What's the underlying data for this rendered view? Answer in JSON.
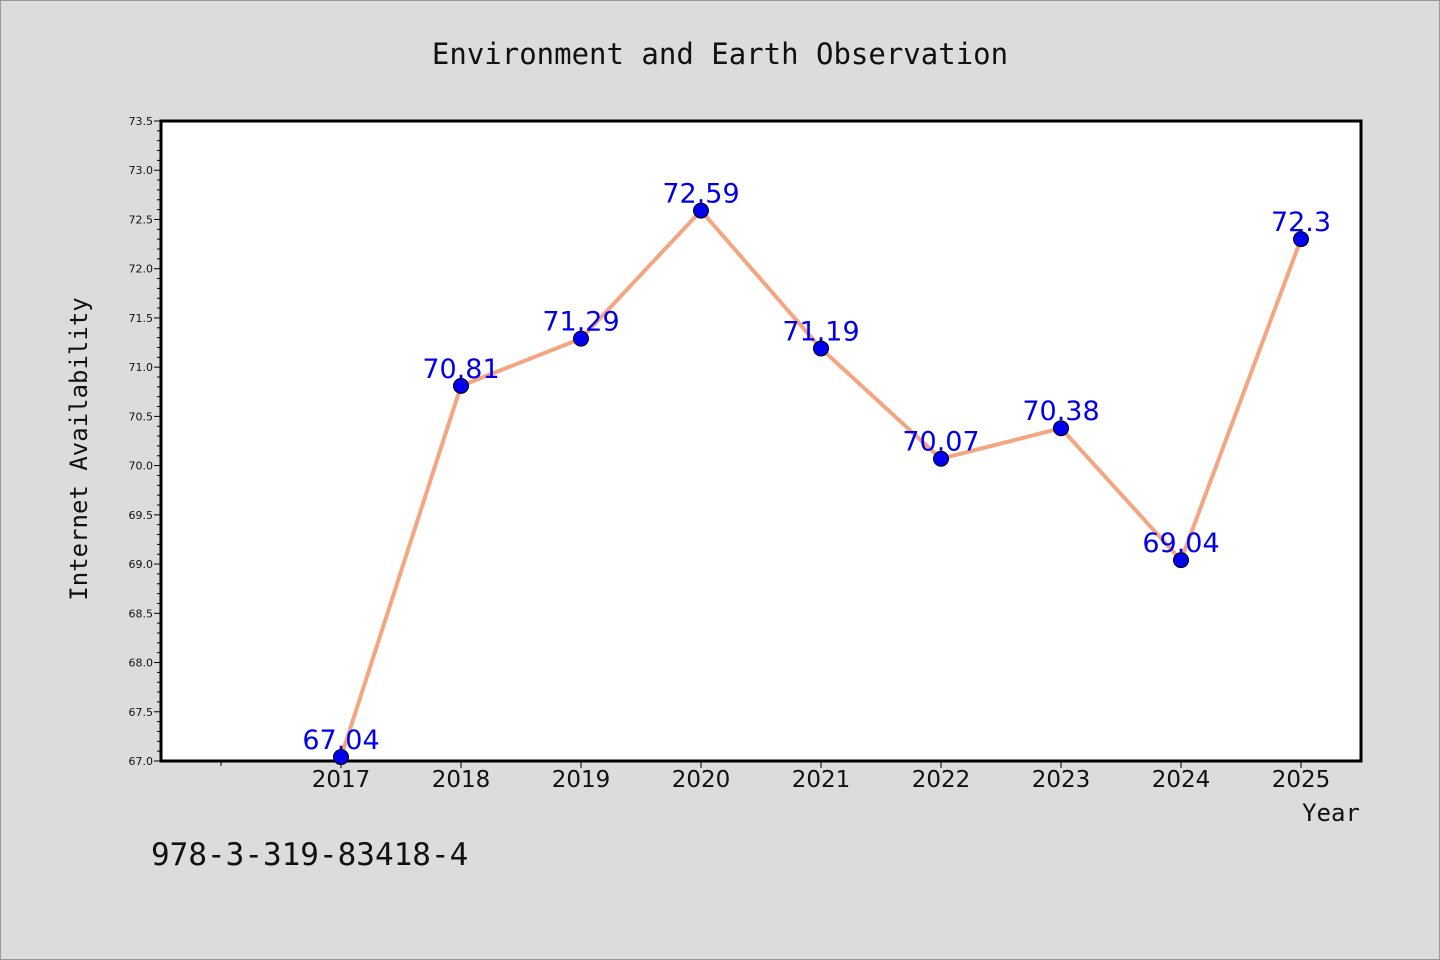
{
  "chart_data": {
    "type": "line",
    "title": "Environment and Earth Observation",
    "xlabel": "Year",
    "ylabel": "Internet Availability",
    "categories": [
      "2017",
      "2018",
      "2019",
      "2020",
      "2021",
      "2022",
      "2023",
      "2024",
      "2025"
    ],
    "series": [
      {
        "values": [
          67.04,
          70.81,
          71.29,
          72.59,
          71.19,
          70.07,
          70.38,
          69.04,
          72.3
        ],
        "labels": [
          "67.04",
          "70.81",
          "71.29",
          "72.59",
          "71.19",
          "70.07",
          "70.38",
          "69.04",
          "72.3"
        ],
        "line_color": "#f4a582",
        "marker_color": "#0000ee"
      }
    ],
    "ylim": [
      67.0,
      73.5
    ],
    "yticks": [
      "67.0",
      "67.5",
      "68.0",
      "68.5",
      "69.0",
      "69.5",
      "70.0",
      "70.5",
      "71.0",
      "71.5",
      "72.0",
      "72.5",
      "73.0",
      "73.5"
    ],
    "label_color": "#0000ee",
    "grid": false,
    "legend": "none"
  },
  "footer": {
    "identifier": "978-3-319-83418-4"
  }
}
